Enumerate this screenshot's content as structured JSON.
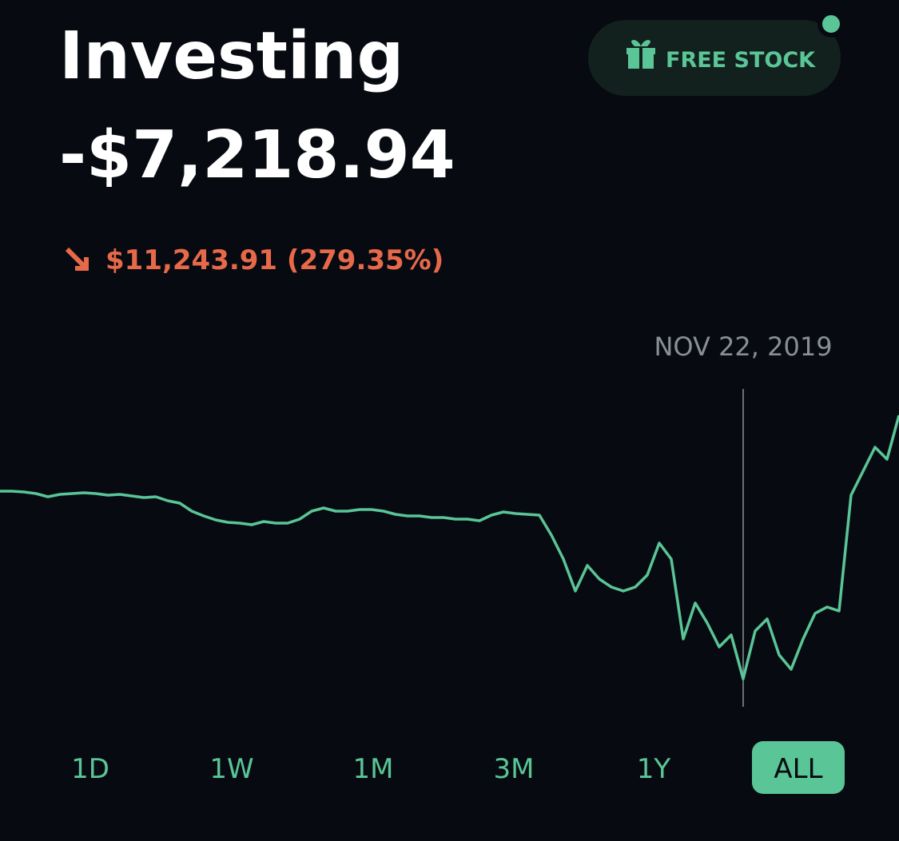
{
  "header": {
    "title": "Investing",
    "value": "-$7,218.94",
    "change": "$11,243.91 (279.35%)"
  },
  "button": {
    "label": "FREE STOCK"
  },
  "chart_data": {
    "type": "line",
    "color": "#5ac596",
    "values": [
      66.25,
      66.25,
      66,
      65.5,
      64.5,
      65.25,
      65.5,
      65.75,
      65.5,
      65,
      65.25,
      64.75,
      64.25,
      64.5,
      63.25,
      62.5,
      60,
      58.5,
      57.25,
      56.5,
      56.25,
      55.75,
      56.75,
      56.25,
      56.25,
      57.5,
      60,
      61,
      60,
      60,
      60.5,
      60.5,
      60,
      59,
      58.5,
      58.5,
      58,
      58,
      57.5,
      57.5,
      57,
      58.75,
      59.75,
      59.25,
      59,
      58.75,
      52.5,
      45,
      35,
      43,
      38.75,
      36.25,
      35,
      36.25,
      40,
      50,
      45,
      20,
      31.25,
      25,
      17.5,
      21.25,
      7.5,
      22.5,
      26.25,
      15,
      10.5,
      20,
      28,
      30,
      28.75,
      65,
      72.5,
      80,
      76.25,
      90
    ],
    "ylim": [
      0,
      100
    ],
    "cursor_label": "NOV 22, 2019",
    "cursor_index": 62
  },
  "ranges": [
    "1D",
    "1W",
    "1M",
    "3M",
    "1Y",
    "ALL"
  ],
  "selected_range": 5
}
